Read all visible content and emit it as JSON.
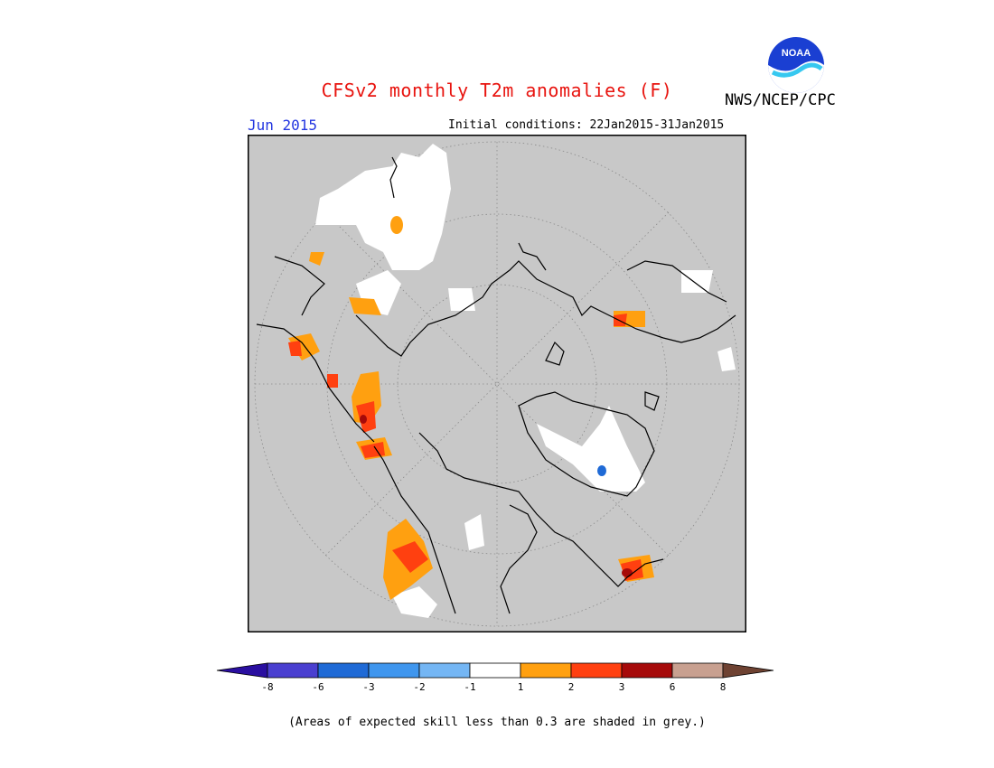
{
  "header": {
    "title": "CFSv2 monthly T2m anomalies (F)",
    "agency": "NWS/NCEP/CPC",
    "logo_text": "NOAA",
    "target_month": "Jun 2015",
    "initial_conditions": "Initial conditions: 22Jan2015-31Jan2015"
  },
  "colors": {
    "title": "#e8140f",
    "month": "#2336e0",
    "land_low_skill": "#c8c8c8",
    "coast": "#000000",
    "grid": "#8a8a8a"
  },
  "legend": {
    "bins": [
      {
        "color": "#2a0fa0"
      },
      {
        "color": "#4a3fd0"
      },
      {
        "color": "#1f6ad6"
      },
      {
        "color": "#3f96ee"
      },
      {
        "color": "#74b6f4"
      },
      {
        "color": "#ffffff"
      },
      {
        "color": "#ffa010"
      },
      {
        "color": "#ff4010"
      },
      {
        "color": "#a60a0a"
      },
      {
        "color": "#c8a090"
      },
      {
        "color": "#6e4232"
      }
    ],
    "tick_labels": [
      "-8",
      "-6",
      "-3",
      "-2",
      "-1",
      "1",
      "2",
      "3",
      "6",
      "8"
    ]
  },
  "footnote": "(Areas of expected skill less than 0.3 are shaded in grey.)"
}
